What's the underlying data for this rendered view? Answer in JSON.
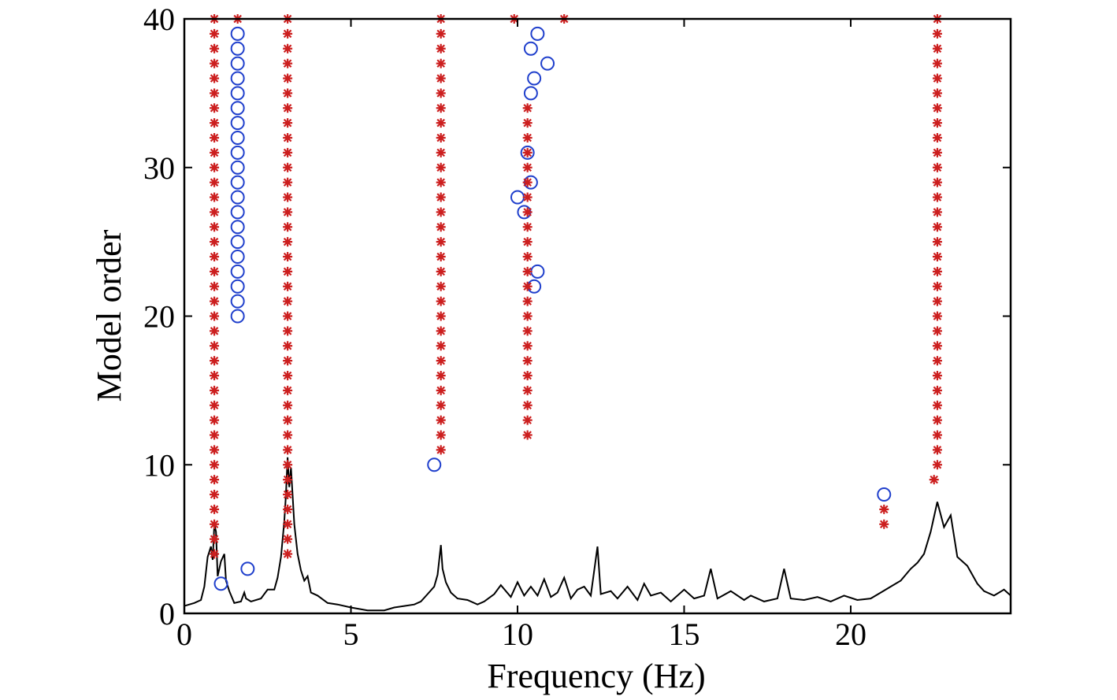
{
  "chart_data": {
    "type": "scatter",
    "xlabel": "Frequency (Hz)",
    "ylabel": "Model order",
    "xlim": [
      0,
      24.8
    ],
    "ylim": [
      0,
      40
    ],
    "xticks": [
      0,
      5,
      10,
      15,
      20
    ],
    "yticks": [
      0,
      10,
      20,
      30,
      40
    ],
    "grid": false,
    "colors": {
      "stable": "#cc1f1f",
      "unstable": "#1f3fcc",
      "spectrum": "#000000",
      "frame": "#000000"
    },
    "series": [
      {
        "marker": "star",
        "points": [
          [
            0.9,
            4
          ],
          [
            0.9,
            5
          ],
          [
            0.9,
            6
          ],
          [
            0.9,
            7
          ],
          [
            0.9,
            8
          ],
          [
            0.9,
            9
          ],
          [
            0.9,
            10
          ],
          [
            0.9,
            11
          ],
          [
            0.9,
            12
          ],
          [
            0.9,
            13
          ],
          [
            0.9,
            14
          ],
          [
            0.9,
            15
          ],
          [
            0.9,
            16
          ],
          [
            0.9,
            17
          ],
          [
            0.9,
            18
          ],
          [
            0.9,
            19
          ],
          [
            0.9,
            20
          ],
          [
            0.9,
            21
          ],
          [
            0.9,
            22
          ],
          [
            0.9,
            23
          ],
          [
            0.9,
            24
          ],
          [
            0.9,
            25
          ],
          [
            0.9,
            26
          ],
          [
            0.9,
            27
          ],
          [
            0.9,
            28
          ],
          [
            0.9,
            29
          ],
          [
            0.9,
            30
          ],
          [
            0.9,
            31
          ],
          [
            0.9,
            32
          ],
          [
            0.9,
            33
          ],
          [
            0.9,
            34
          ],
          [
            0.9,
            35
          ],
          [
            0.9,
            36
          ],
          [
            0.9,
            37
          ],
          [
            0.9,
            38
          ],
          [
            0.9,
            39
          ],
          [
            0.9,
            40
          ],
          [
            1.6,
            40
          ],
          [
            3.1,
            4
          ],
          [
            3.1,
            5
          ],
          [
            3.1,
            6
          ],
          [
            3.1,
            7
          ],
          [
            3.1,
            8
          ],
          [
            3.1,
            9
          ],
          [
            3.1,
            10
          ],
          [
            3.1,
            11
          ],
          [
            3.1,
            12
          ],
          [
            3.1,
            13
          ],
          [
            3.1,
            14
          ],
          [
            3.1,
            15
          ],
          [
            3.1,
            16
          ],
          [
            3.1,
            17
          ],
          [
            3.1,
            18
          ],
          [
            3.1,
            19
          ],
          [
            3.1,
            20
          ],
          [
            3.1,
            21
          ],
          [
            3.1,
            22
          ],
          [
            3.1,
            23
          ],
          [
            3.1,
            24
          ],
          [
            3.1,
            25
          ],
          [
            3.1,
            26
          ],
          [
            3.1,
            27
          ],
          [
            3.1,
            28
          ],
          [
            3.1,
            29
          ],
          [
            3.1,
            30
          ],
          [
            3.1,
            31
          ],
          [
            3.1,
            32
          ],
          [
            3.1,
            33
          ],
          [
            3.1,
            34
          ],
          [
            3.1,
            35
          ],
          [
            3.1,
            36
          ],
          [
            3.1,
            37
          ],
          [
            3.1,
            38
          ],
          [
            3.1,
            39
          ],
          [
            3.1,
            40
          ],
          [
            7.7,
            11
          ],
          [
            7.7,
            12
          ],
          [
            7.7,
            13
          ],
          [
            7.7,
            14
          ],
          [
            7.7,
            15
          ],
          [
            7.7,
            16
          ],
          [
            7.7,
            17
          ],
          [
            7.7,
            18
          ],
          [
            7.7,
            19
          ],
          [
            7.7,
            20
          ],
          [
            7.7,
            21
          ],
          [
            7.7,
            22
          ],
          [
            7.7,
            23
          ],
          [
            7.7,
            24
          ],
          [
            7.7,
            25
          ],
          [
            7.7,
            26
          ],
          [
            7.7,
            27
          ],
          [
            7.7,
            28
          ],
          [
            7.7,
            29
          ],
          [
            7.7,
            30
          ],
          [
            7.7,
            31
          ],
          [
            7.7,
            32
          ],
          [
            7.7,
            33
          ],
          [
            7.7,
            34
          ],
          [
            7.7,
            35
          ],
          [
            7.7,
            36
          ],
          [
            7.7,
            37
          ],
          [
            7.7,
            38
          ],
          [
            7.7,
            39
          ],
          [
            7.7,
            40
          ],
          [
            10.3,
            12
          ],
          [
            10.3,
            13
          ],
          [
            10.3,
            14
          ],
          [
            10.3,
            15
          ],
          [
            10.3,
            16
          ],
          [
            10.3,
            17
          ],
          [
            10.3,
            18
          ],
          [
            10.3,
            19
          ],
          [
            10.3,
            20
          ],
          [
            10.3,
            21
          ],
          [
            10.3,
            22
          ],
          [
            10.3,
            23
          ],
          [
            10.3,
            24
          ],
          [
            10.3,
            25
          ],
          [
            10.3,
            26
          ],
          [
            10.3,
            27
          ],
          [
            10.3,
            28
          ],
          [
            10.3,
            29
          ],
          [
            10.3,
            30
          ],
          [
            10.3,
            31
          ],
          [
            10.3,
            32
          ],
          [
            10.3,
            33
          ],
          [
            10.3,
            34
          ],
          [
            9.9,
            40
          ],
          [
            11.4,
            40
          ],
          [
            21.0,
            6
          ],
          [
            21.0,
            7
          ],
          [
            22.5,
            9
          ],
          [
            22.6,
            10
          ],
          [
            22.6,
            11
          ],
          [
            22.6,
            12
          ],
          [
            22.6,
            13
          ],
          [
            22.6,
            14
          ],
          [
            22.6,
            15
          ],
          [
            22.6,
            16
          ],
          [
            22.6,
            17
          ],
          [
            22.6,
            18
          ],
          [
            22.6,
            19
          ],
          [
            22.6,
            20
          ],
          [
            22.6,
            21
          ],
          [
            22.6,
            22
          ],
          [
            22.6,
            23
          ],
          [
            22.6,
            24
          ],
          [
            22.6,
            25
          ],
          [
            22.6,
            26
          ],
          [
            22.6,
            27
          ],
          [
            22.6,
            28
          ],
          [
            22.6,
            29
          ],
          [
            22.6,
            30
          ],
          [
            22.6,
            31
          ],
          [
            22.6,
            32
          ],
          [
            22.6,
            33
          ],
          [
            22.6,
            34
          ],
          [
            22.6,
            35
          ],
          [
            22.6,
            36
          ],
          [
            22.6,
            37
          ],
          [
            22.6,
            38
          ],
          [
            22.6,
            39
          ],
          [
            22.6,
            40
          ]
        ]
      },
      {
        "marker": "circle",
        "points": [
          [
            1.6,
            20
          ],
          [
            1.6,
            21
          ],
          [
            1.6,
            22
          ],
          [
            1.6,
            23
          ],
          [
            1.6,
            24
          ],
          [
            1.6,
            25
          ],
          [
            1.6,
            26
          ],
          [
            1.6,
            27
          ],
          [
            1.6,
            28
          ],
          [
            1.6,
            29
          ],
          [
            1.6,
            30
          ],
          [
            1.6,
            31
          ],
          [
            1.6,
            32
          ],
          [
            1.6,
            33
          ],
          [
            1.6,
            34
          ],
          [
            1.6,
            35
          ],
          [
            1.6,
            36
          ],
          [
            1.6,
            37
          ],
          [
            1.6,
            38
          ],
          [
            1.6,
            39
          ],
          [
            1.1,
            2
          ],
          [
            1.9,
            3
          ],
          [
            7.5,
            10
          ],
          [
            10.6,
            23
          ],
          [
            10.5,
            22
          ],
          [
            10.2,
            27
          ],
          [
            10.0,
            28
          ],
          [
            10.4,
            29
          ],
          [
            10.3,
            31
          ],
          [
            10.4,
            35
          ],
          [
            10.5,
            36
          ],
          [
            10.4,
            38
          ],
          [
            10.6,
            39
          ],
          [
            10.9,
            37
          ],
          [
            21.0,
            8
          ]
        ]
      },
      {
        "marker": "line",
        "points": [
          [
            0,
            0.5
          ],
          [
            0.3,
            0.7
          ],
          [
            0.5,
            0.9
          ],
          [
            0.6,
            1.8
          ],
          [
            0.7,
            3.8
          ],
          [
            0.8,
            4.5
          ],
          [
            0.85,
            3.6
          ],
          [
            0.9,
            6
          ],
          [
            0.95,
            5.5
          ],
          [
            1.0,
            2.5
          ],
          [
            1.1,
            3.5
          ],
          [
            1.2,
            4.0
          ],
          [
            1.25,
            2.2
          ],
          [
            1.35,
            1.5
          ],
          [
            1.5,
            0.7
          ],
          [
            1.7,
            0.8
          ],
          [
            1.8,
            1.4
          ],
          [
            1.85,
            1.0
          ],
          [
            2.0,
            0.8
          ],
          [
            2.3,
            1.0
          ],
          [
            2.5,
            1.6
          ],
          [
            2.7,
            1.6
          ],
          [
            2.8,
            2.4
          ],
          [
            2.9,
            3.8
          ],
          [
            3.0,
            6.2
          ],
          [
            3.05,
            8.0
          ],
          [
            3.1,
            10.5
          ],
          [
            3.15,
            8.5
          ],
          [
            3.2,
            9.8
          ],
          [
            3.3,
            6.0
          ],
          [
            3.4,
            4.0
          ],
          [
            3.5,
            2.9
          ],
          [
            3.6,
            2.2
          ],
          [
            3.7,
            2.5
          ],
          [
            3.8,
            1.4
          ],
          [
            4.0,
            1.2
          ],
          [
            4.3,
            0.7
          ],
          [
            4.6,
            0.6
          ],
          [
            5.0,
            0.4
          ],
          [
            5.5,
            0.2
          ],
          [
            6.0,
            0.2
          ],
          [
            6.3,
            0.4
          ],
          [
            6.6,
            0.5
          ],
          [
            6.9,
            0.6
          ],
          [
            7.1,
            0.8
          ],
          [
            7.3,
            1.3
          ],
          [
            7.5,
            1.8
          ],
          [
            7.6,
            2.6
          ],
          [
            7.7,
            4.6
          ],
          [
            7.75,
            3.0
          ],
          [
            7.85,
            2.1
          ],
          [
            8.0,
            1.4
          ],
          [
            8.2,
            1.0
          ],
          [
            8.5,
            0.9
          ],
          [
            8.8,
            0.6
          ],
          [
            9.0,
            0.8
          ],
          [
            9.3,
            1.3
          ],
          [
            9.5,
            1.9
          ],
          [
            9.8,
            1.1
          ],
          [
            10.0,
            2.1
          ],
          [
            10.2,
            1.2
          ],
          [
            10.4,
            1.8
          ],
          [
            10.6,
            1.2
          ],
          [
            10.8,
            2.3
          ],
          [
            11.0,
            1.1
          ],
          [
            11.2,
            1.4
          ],
          [
            11.4,
            2.4
          ],
          [
            11.6,
            1.0
          ],
          [
            11.8,
            1.6
          ],
          [
            12.0,
            1.8
          ],
          [
            12.2,
            1.2
          ],
          [
            12.4,
            4.5
          ],
          [
            12.5,
            1.3
          ],
          [
            12.8,
            1.5
          ],
          [
            13.0,
            1.0
          ],
          [
            13.3,
            1.8
          ],
          [
            13.6,
            0.9
          ],
          [
            13.8,
            2.0
          ],
          [
            14.0,
            1.2
          ],
          [
            14.3,
            1.4
          ],
          [
            14.6,
            0.8
          ],
          [
            15.0,
            1.6
          ],
          [
            15.3,
            1.0
          ],
          [
            15.6,
            1.2
          ],
          [
            15.8,
            3.0
          ],
          [
            16.0,
            1.0
          ],
          [
            16.4,
            1.5
          ],
          [
            16.8,
            0.9
          ],
          [
            17.0,
            1.2
          ],
          [
            17.4,
            0.8
          ],
          [
            17.8,
            1.0
          ],
          [
            18.0,
            3.0
          ],
          [
            18.2,
            1.0
          ],
          [
            18.6,
            0.9
          ],
          [
            19.0,
            1.1
          ],
          [
            19.4,
            0.8
          ],
          [
            19.8,
            1.2
          ],
          [
            20.2,
            0.9
          ],
          [
            20.6,
            1.0
          ],
          [
            20.9,
            1.4
          ],
          [
            21.2,
            1.8
          ],
          [
            21.5,
            2.2
          ],
          [
            21.8,
            3.0
          ],
          [
            22.0,
            3.4
          ],
          [
            22.2,
            4.0
          ],
          [
            22.4,
            5.5
          ],
          [
            22.6,
            7.5
          ],
          [
            22.8,
            5.8
          ],
          [
            23.0,
            6.6
          ],
          [
            23.2,
            3.8
          ],
          [
            23.5,
            3.2
          ],
          [
            23.8,
            2.0
          ],
          [
            24.0,
            1.5
          ],
          [
            24.3,
            1.2
          ],
          [
            24.6,
            1.6
          ],
          [
            24.8,
            1.2
          ]
        ]
      }
    ]
  }
}
